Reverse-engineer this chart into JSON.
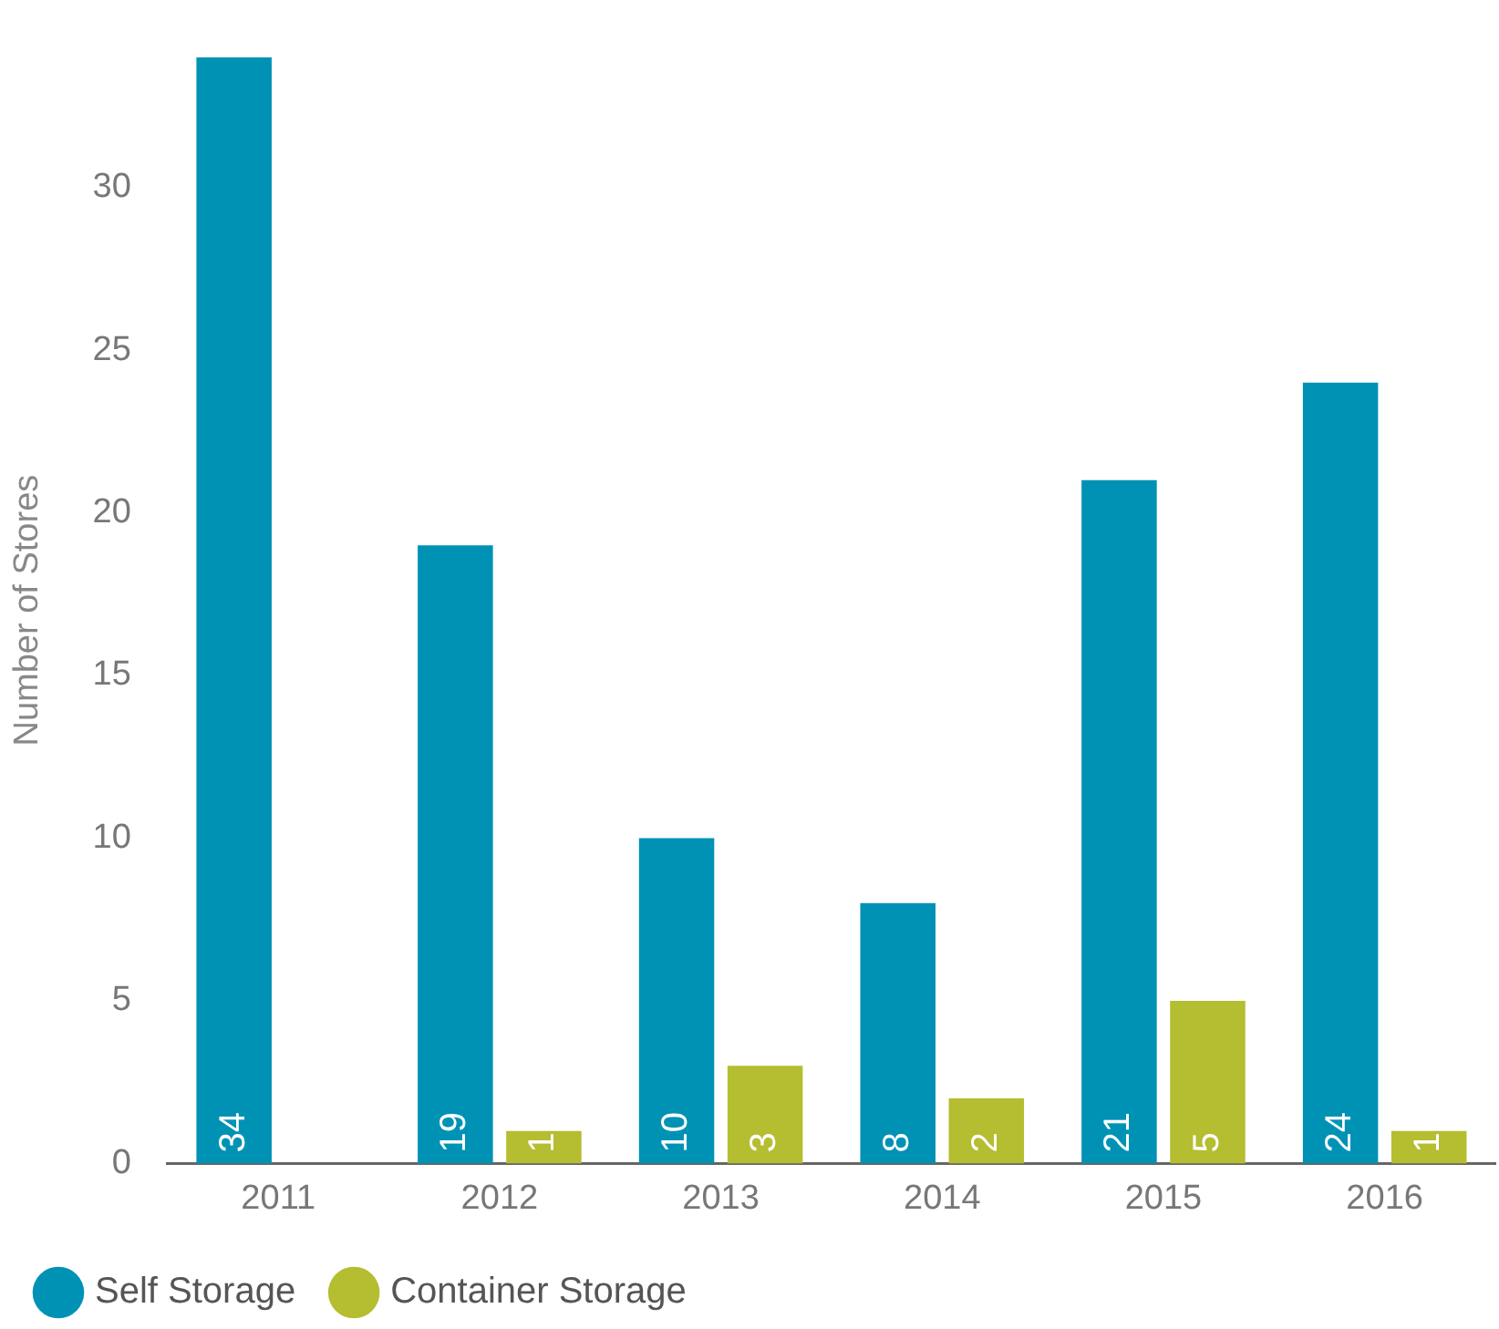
{
  "chart_data": {
    "type": "bar",
    "ylabel": "Number of Stores",
    "categories": [
      "2011",
      "2012",
      "2013",
      "2014",
      "2015",
      "2016"
    ],
    "series": [
      {
        "name": "Self Storage",
        "color": "#0092b5",
        "values": [
          34,
          19,
          10,
          8,
          21,
          24
        ]
      },
      {
        "name": "Container Storage",
        "color": "#b5bd30",
        "values": [
          null,
          1,
          3,
          2,
          5,
          1
        ]
      }
    ],
    "ylim": [
      0,
      34
    ],
    "yticks": [
      0,
      5,
      10,
      15,
      20,
      25,
      30
    ],
    "grid": false,
    "legend": "bottom",
    "data_labels": true
  }
}
